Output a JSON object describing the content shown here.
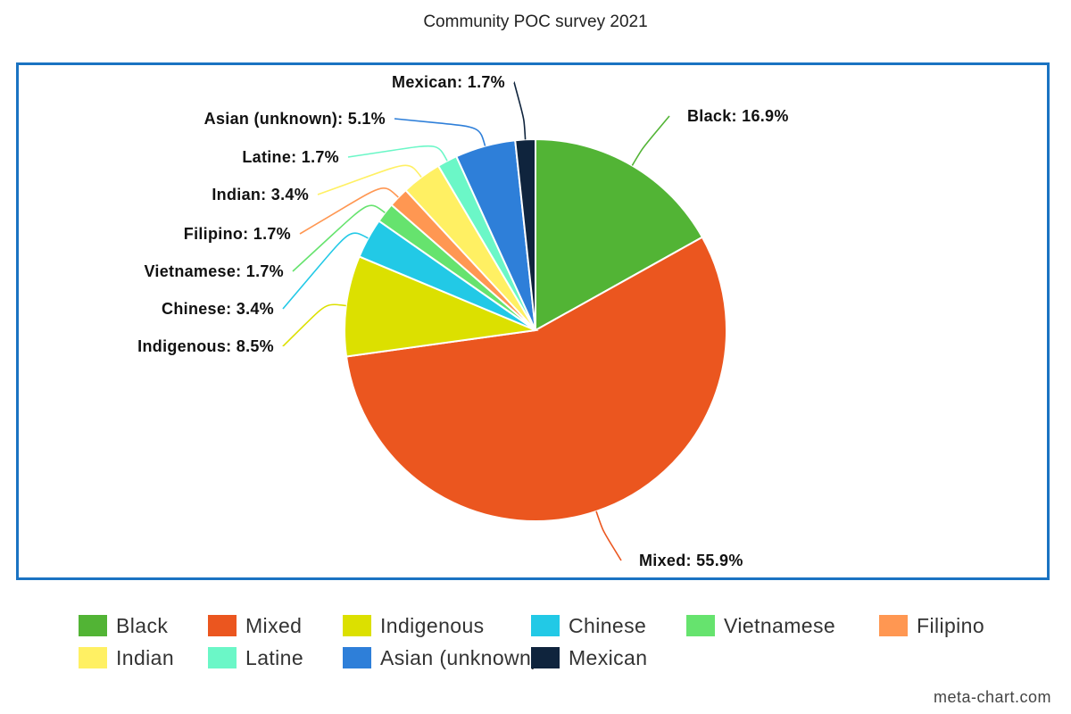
{
  "chart_data": {
    "type": "pie",
    "title": "Community POC survey 2021",
    "categories": [
      "Black",
      "Mixed",
      "Indigenous",
      "Chinese",
      "Vietnamese",
      "Filipino",
      "Indian",
      "Latine",
      "Asian (unknown)",
      "Mexican"
    ],
    "values": [
      16.9,
      55.9,
      8.5,
      3.4,
      1.7,
      1.7,
      3.4,
      1.7,
      5.1,
      1.7
    ],
    "labels": [
      "Black: 16.9%",
      "Mixed: 55.9%",
      "Indigenous: 8.5%",
      "Chinese: 3.4%",
      "Vietnamese: 1.7%",
      "Filipino: 1.7%",
      "Indian: 3.4%",
      "Latine: 1.7%",
      "Asian (unknown): 5.1%",
      "Mexican: 1.7%"
    ],
    "colors": [
      "#52b435",
      "#eb561f",
      "#dce000",
      "#22c9e6",
      "#66e36e",
      "#ff9752",
      "#fff063",
      "#6bf7c7",
      "#2e7fd9",
      "#0f243d"
    ],
    "legend_position": "bottom",
    "border_color": "#1a73c2"
  },
  "watermark": "meta-chart.com"
}
